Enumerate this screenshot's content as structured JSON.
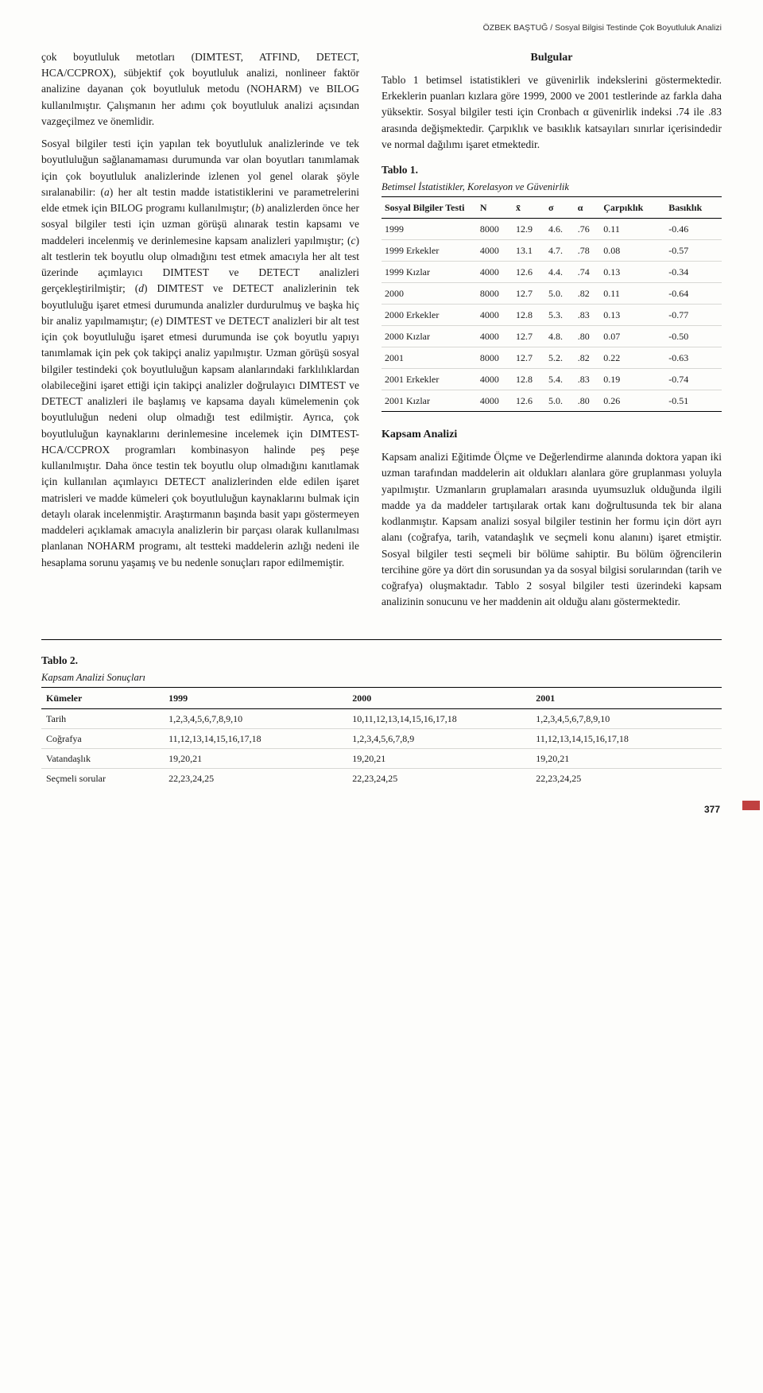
{
  "running_head": "ÖZBEK BAŞTUĞ / Sosyal Bilgisi Testinde Çok Boyutluluk Analizi",
  "left": {
    "p1": "çok boyutluluk metotları (DIMTEST, ATFIND, DETECT, HCA/CCPROX), sübjektif çok boyutluluk analizi, nonlineer faktör analizine dayanan çok boyutluluk metodu (NOHARM) ve BILOG kullanılmıştır. Çalışmanın her adımı çok boyutluluk analizi açısından vazgeçilmez ve önemlidir.",
    "p2a": "Sosyal bilgiler testi için yapılan tek boyutluluk analizlerinde ve tek boyutluluğun sağlanamaması durumunda var olan boyutları tanımlamak için çok boyutluluk analizlerinde izlenen yol genel olarak şöyle sıralanabilir: (",
    "p2a_i": "a",
    "p2b": ") her alt testin madde istatistiklerini ve parametrelerini elde etmek için BILOG programı kullanılmıştır; (",
    "p2b_i": "b",
    "p2c": ") analizlerden önce her sosyal bilgiler testi için uzman görüşü alınarak testin kapsamı ve maddeleri incelenmiş ve derinlemesine kapsam analizleri yapılmıştır; (",
    "p2c_i": "c",
    "p2d": ") alt testlerin tek boyutlu olup olmadığını test etmek amacıyla her alt test üzerinde açımlayıcı DIMTEST ve DETECT analizleri gerçekleştirilmiştir; (",
    "p2d_i": "d",
    "p2e": ") DIMTEST ve DETECT analizlerinin tek boyutluluğu işaret etmesi durumunda analizler durdurulmuş ve başka hiç bir analiz yapılmamıştır; (",
    "p2e_i": "e",
    "p2f": ") DIMTEST ve DETECT analizleri bir alt test için çok boyutluluğu işaret etmesi durumunda ise çok boyutlu yapıyı tanımlamak için pek çok takipçi analiz yapılmıştır. Uzman görüşü sosyal bilgiler testindeki çok boyutluluğun kapsam alanlarındaki farklılıklardan olabileceğini işaret ettiği için takipçi analizler doğrulayıcı DIMTEST ve DETECT analizleri ile başlamış ve kapsama dayalı kümelemenin çok boyutluluğun nedeni olup olmadığı test edilmiştir. Ayrıca, çok boyutluluğun kaynaklarını derinlemesine incelemek için DIMTEST-HCA/CCPROX programları kombinasyon halinde peş peşe kullanılmıştır. Daha önce testin tek boyutlu olup olmadığını kanıtlamak için kullanılan açımlayıcı DETECT analizlerinden elde edilen işaret matrisleri ve madde kümeleri çok boyutluluğun kaynaklarını bulmak için detaylı olarak incelenmiştir. Araştırmanın başında basit yapı göstermeyen maddeleri açıklamak amacıyla analizlerin bir parçası olarak kullanılması planlanan NOHARM programı, alt testteki maddelerin azlığı nedeni ile hesaplama sorunu yaşamış ve bu nedenle sonuçları rapor edilmemiştir."
  },
  "right": {
    "bulgular_title": "Bulgular",
    "bulgular_p": "Tablo 1 betimsel istatistikleri ve güvenirlik indekslerini göstermektedir. Erkeklerin puanları kızlara göre 1999, 2000 ve 2001 testlerinde az farkla daha yüksektir. Sosyal bilgiler testi için Cronbach α güvenirlik indeksi .74 ile .83 arasında değişmektedir. Çarpıklık ve basıklık katsayıları sınırlar içerisindedir ve normal dağılımı işaret etmektedir.",
    "kapsam_title": "Kapsam Analizi",
    "kapsam_p": "Kapsam analizi Eğitimde Ölçme ve Değerlendirme alanında doktora yapan iki uzman tarafından maddelerin ait oldukları alanlara göre gruplanması yoluyla yapılmıştır. Uzmanların gruplamaları arasında uyumsuzluk olduğunda ilgili madde ya da maddeler tartışılarak ortak kanı doğrultusunda tek bir alana kodlanmıştır. Kapsam analizi sosyal bilgiler testinin her formu için dört ayrı alanı (coğrafya, tarih, vatandaşlık ve seçmeli konu alanını) işaret etmiştir. Sosyal bilgiler testi seçmeli bir bölüme sahiptir. Bu bölüm öğrencilerin tercihine göre ya dört din sorusundan ya da sosyal bilgisi sorularından (tarih ve coğrafya) oluşmaktadır. Tablo 2 sosyal bilgiler testi üzerindeki kapsam analizinin sonucunu ve her maddenin ait olduğu alanı göstermektedir."
  },
  "table1": {
    "caption_bold": "Tablo 1.",
    "caption_sub": "Betimsel İstatistikler, Korelasyon ve Güvenirlik",
    "headers": [
      "Sosyal Bilgiler Testi",
      "N",
      "x̄",
      "σ",
      "α",
      "Çarpıklık",
      "Basıklık"
    ],
    "rows": [
      [
        "1999",
        "8000",
        "12.9",
        "4.6.",
        ".76",
        "0.11",
        "-0.46"
      ],
      [
        "1999 Erkekler",
        "4000",
        "13.1",
        "4.7.",
        ".78",
        "0.08",
        "-0.57"
      ],
      [
        "1999 Kızlar",
        "4000",
        "12.6",
        "4.4.",
        ".74",
        "0.13",
        "-0.34"
      ],
      [
        "2000",
        "8000",
        "12.7",
        "5.0.",
        ".82",
        "0.11",
        "-0.64"
      ],
      [
        "2000 Erkekler",
        "4000",
        "12.8",
        "5.3.",
        ".83",
        "0.13",
        "-0.77"
      ],
      [
        "2000 Kızlar",
        "4000",
        "12.7",
        "4.8.",
        ".80",
        "0.07",
        "-0.50"
      ],
      [
        "2001",
        "8000",
        "12.7",
        "5.2.",
        ".82",
        "0.22",
        "-0.63"
      ],
      [
        "2001 Erkekler",
        "4000",
        "12.8",
        "5.4.",
        ".83",
        "0.19",
        "-0.74"
      ],
      [
        "2001 Kızlar",
        "4000",
        "12.6",
        "5.0.",
        ".80",
        "0.26",
        "-0.51"
      ]
    ]
  },
  "table2": {
    "caption_bold": "Tablo 2.",
    "caption_sub": "Kapsam Analizi Sonuçları",
    "headers": [
      "Kümeler",
      "1999",
      "2000",
      "2001"
    ],
    "rows": [
      [
        "Tarih",
        "1,2,3,4,5,6,7,8,9,10",
        "10,11,12,13,14,15,16,17,18",
        "1,2,3,4,5,6,7,8,9,10"
      ],
      [
        "Coğrafya",
        "11,12,13,14,15,16,17,18",
        "1,2,3,4,5,6,7,8,9",
        "11,12,13,14,15,16,17,18"
      ],
      [
        "Vatandaşlık",
        "19,20,21",
        "19,20,21",
        "19,20,21"
      ],
      [
        "Seçmeli sorular",
        "22,23,24,25",
        "22,23,24,25",
        "22,23,24,25"
      ]
    ]
  },
  "page_number": "377"
}
